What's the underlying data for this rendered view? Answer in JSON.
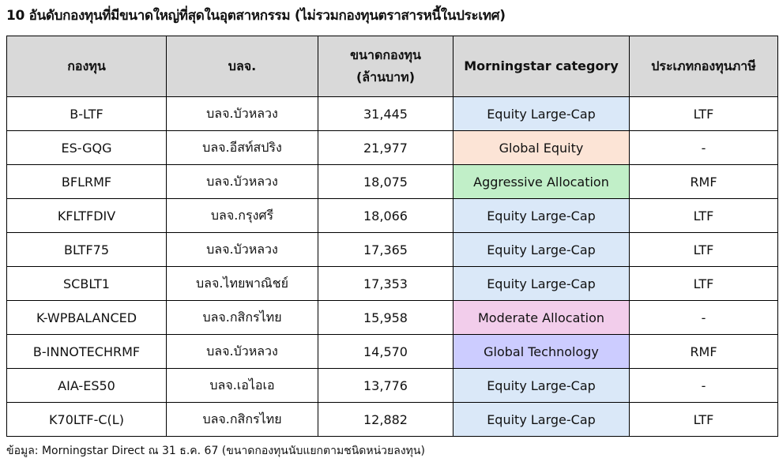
{
  "title": "10 อันดับกองทุนที่มีขนาดใหญ่ที่สุดในอุตสาหกรรม (ไม่รวมกองทุนตราสารหนี้ในประเทศ)",
  "headers": [
    "กองทุน",
    "บลจ.",
    "ขนาดกองทุน (ล้านบาท)",
    "Morningstar category",
    "ประเภทกองทุนภาษี"
  ],
  "category_colors": {
    "Equity Large-Cap": "#dae8f8",
    "Global Equity": "#fce4d6",
    "Aggressive Allocation": "#c1efc8",
    "Moderate Allocation": "#f2cdeb",
    "Global Technology": "#ccccff"
  },
  "rows": [
    {
      "fund": "B-LTF",
      "amc": "บลจ.บัวหลวง",
      "size": "31,445",
      "category": "Equity Large-Cap",
      "tax": "LTF"
    },
    {
      "fund": "ES-GQG",
      "amc": "บลจ.อีสท์สปริง",
      "size": "21,977",
      "category": "Global Equity",
      "tax": "-"
    },
    {
      "fund": "BFLRMF",
      "amc": "บลจ.บัวหลวง",
      "size": "18,075",
      "category": "Aggressive Allocation",
      "tax": "RMF"
    },
    {
      "fund": "KFLTFDIV",
      "amc": "บลจ.กรุงศรี",
      "size": "18,066",
      "category": "Equity Large-Cap",
      "tax": "LTF"
    },
    {
      "fund": "BLTF75",
      "amc": "บลจ.บัวหลวง",
      "size": "17,365",
      "category": "Equity Large-Cap",
      "tax": "LTF"
    },
    {
      "fund": "SCBLT1",
      "amc": "บลจ.ไทยพาณิชย์",
      "size": "17,353",
      "category": "Equity Large-Cap",
      "tax": "LTF"
    },
    {
      "fund": "K-WPBALANCED",
      "amc": "บลจ.กสิกรไทย",
      "size": "15,958",
      "category": "Moderate Allocation",
      "tax": "-"
    },
    {
      "fund": "B-INNOTECHRMF",
      "amc": "บลจ.บัวหลวง",
      "size": "14,570",
      "category": "Global Technology",
      "tax": "RMF"
    },
    {
      "fund": "AIA-ES50",
      "amc": "บลจ.เอไอเอ",
      "size": "13,776",
      "category": "Equity Large-Cap",
      "tax": "-"
    },
    {
      "fund": "K70LTF-C(L)",
      "amc": "บลจ.กสิกรไทย",
      "size": "12,882",
      "category": "Equity Large-Cap",
      "tax": "LTF"
    }
  ],
  "footnote": "ข้อมูล: Morningstar Direct ณ 31 ธ.ค. 67 (ขนาดกองทุนนับแยกตามชนิดหน่วยลงทุน)"
}
